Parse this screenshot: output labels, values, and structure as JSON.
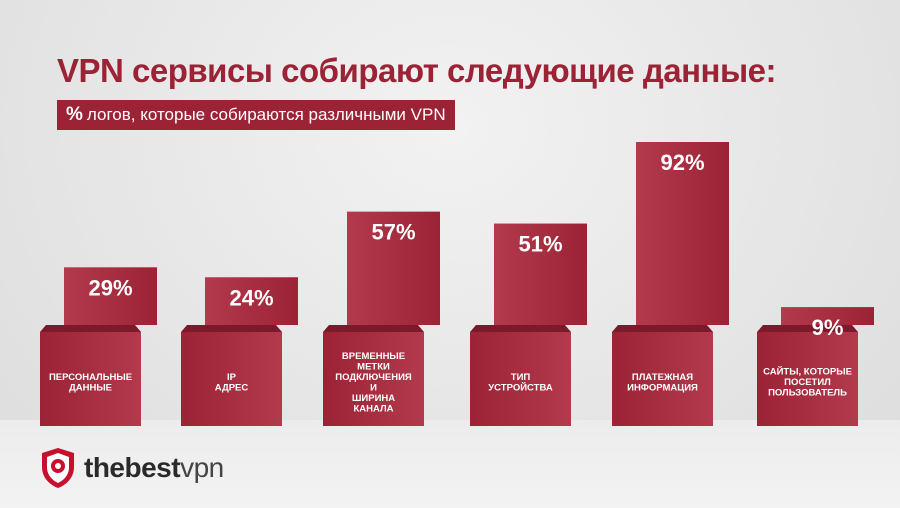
{
  "header": {
    "title": "VPN сервисы собирают следующие данные:",
    "subtitle_pct": "%",
    "subtitle": "логов, которые собираются различными VPN"
  },
  "brand": {
    "logo_bold": "thebest",
    "logo_light": "vpn",
    "icon": "shield-icon"
  },
  "colors": {
    "bar": "#9b2335",
    "bar_dark": "#7a1a2a",
    "bar_light": "#b23a4c",
    "text": "#ffffff",
    "title": "#9b2335"
  },
  "chart_data": {
    "type": "bar",
    "categories": [
      "ПЕРСОНАЛЬНЫЕ ДАННЫЕ",
      "IP АДРЕС",
      "ВРЕМЕННЫЕ МЕТКИ ПОДКЛЮЧЕНИЯ И ШИРИНА КАНАЛА",
      "ТИП УСТРОЙСТВА",
      "ПЛАТЕЖНАЯ ИНФОРМАЦИЯ",
      "САЙТЫ, КОТОРЫЕ ПОСЕТИЛ ПОЛЬЗОВАТЕЛЬ"
    ],
    "category_lines": [
      [
        "ПЕРСОНАЛЬНЫЕ",
        "ДАННЫЕ"
      ],
      [
        "IP",
        "АДРЕС"
      ],
      [
        "ВРЕМЕННЫЕ",
        "МЕТКИ",
        "ПОДКЛЮЧЕНИЯ",
        "И",
        "ШИРИНА",
        "КАНАЛА"
      ],
      [
        "ТИП",
        "УСТРОЙСТВА"
      ],
      [
        "ПЛАТЕЖНАЯ",
        "ИНФОРМАЦИЯ"
      ],
      [
        "САЙТЫ, КОТОРЫЕ",
        "ПОСЕТИЛ",
        "ПОЛЬЗОВАТЕЛЬ"
      ]
    ],
    "values": [
      29,
      24,
      57,
      51,
      92,
      9
    ],
    "labels": [
      "29%",
      "24%",
      "57%",
      "51%",
      "92%",
      "9%"
    ],
    "unit": "%",
    "title": "VPN сервисы собирают следующие данные:",
    "subtitle": "% логов, которые собираются различными VPN",
    "xlabel": "",
    "ylabel": "",
    "ylim": [
      0,
      100
    ],
    "grid": false,
    "legend": "none"
  }
}
